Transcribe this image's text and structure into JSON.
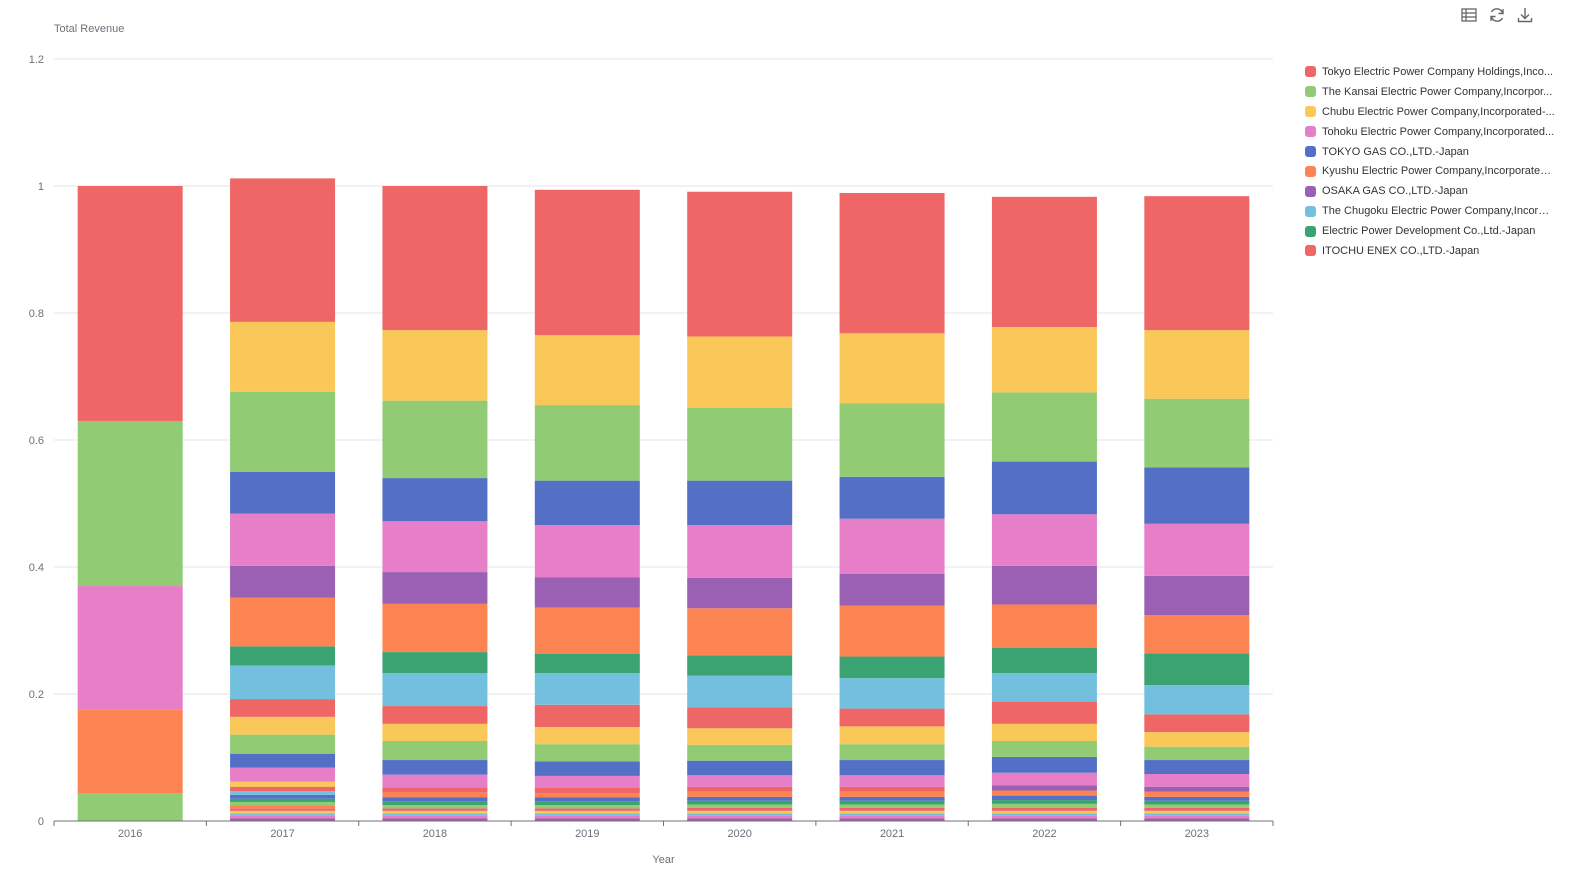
{
  "toolbar": {
    "icons": [
      "table-icon",
      "refresh-icon",
      "download-icon"
    ]
  },
  "legend": [
    {
      "label": "Tokyo Electric Power Company Holdings,Inco...",
      "color": "#ee6666"
    },
    {
      "label": "The Kansai Electric Power Company,Incorpor...",
      "color": "#91cc75"
    },
    {
      "label": "Chubu Electric Power Company,Incorporated-...",
      "color": "#fac858"
    },
    {
      "label": "Tohoku Electric Power Company,Incorporated...",
      "color": "#e77ec8"
    },
    {
      "label": "TOKYO GAS CO.,LTD.-Japan",
      "color": "#5470c6"
    },
    {
      "label": "Kyushu Electric Power Company,Incorporated...",
      "color": "#fc8452"
    },
    {
      "label": "OSAKA GAS CO.,LTD.-Japan",
      "color": "#9a60b4"
    },
    {
      "label": "The Chugoku Electric Power Company,Incorpo...",
      "color": "#73c0de"
    },
    {
      "label": "Electric Power Development Co.,Ltd.-Japan",
      "color": "#3ba272"
    },
    {
      "label": "ITOCHU ENEX CO.,LTD.-Japan",
      "color": "#ee6666"
    }
  ],
  "chart_data": {
    "type": "bar",
    "stacked": true,
    "title": "",
    "ylabel": "Total Revenue",
    "xlabel": "Year",
    "ylim": [
      0,
      1.2
    ],
    "yticks": [
      "0",
      "0.2",
      "0.4",
      "0.6",
      "0.8",
      "1",
      "1.2"
    ],
    "categories": [
      "2016",
      "2017",
      "2018",
      "2019",
      "2020",
      "2021",
      "2022",
      "2023"
    ],
    "grid": true,
    "legend_position": "right",
    "bars": [
      {
        "year": "2016",
        "segments": [
          {
            "value": 0.043,
            "color": "#91cc75"
          },
          {
            "value": 0.132,
            "color": "#fc8452"
          },
          {
            "value": 0.195,
            "color": "#e77ec8"
          },
          {
            "value": 0.26,
            "color": "#91cc75"
          },
          {
            "value": 0.37,
            "color": "#ee6666"
          }
        ]
      },
      {
        "year": "2017",
        "segments": [
          {
            "value": 0.004,
            "color": "#9a60b4"
          },
          {
            "value": 0.004,
            "color": "#e77ec8"
          },
          {
            "value": 0.004,
            "color": "#73c0de"
          },
          {
            "value": 0.004,
            "color": "#fac858"
          },
          {
            "value": 0.004,
            "color": "#ee6666"
          },
          {
            "value": 0.005,
            "color": "#fc8452"
          },
          {
            "value": 0.005,
            "color": "#91cc75"
          },
          {
            "value": 0.005,
            "color": "#3ba272"
          },
          {
            "value": 0.006,
            "color": "#5470c6"
          },
          {
            "value": 0.006,
            "color": "#73c0de"
          },
          {
            "value": 0.007,
            "color": "#ee6666"
          },
          {
            "value": 0.008,
            "color": "#fac858"
          },
          {
            "value": 0.022,
            "color": "#e77ec8"
          },
          {
            "value": 0.022,
            "color": "#5470c6"
          },
          {
            "value": 0.03,
            "color": "#91cc75"
          },
          {
            "value": 0.028,
            "color": "#fac858"
          },
          {
            "value": 0.028,
            "color": "#ee6666"
          },
          {
            "value": 0.053,
            "color": "#73c0de"
          },
          {
            "value": 0.03,
            "color": "#3ba272"
          },
          {
            "value": 0.077,
            "color": "#fc8452"
          },
          {
            "value": 0.05,
            "color": "#9a60b4"
          },
          {
            "value": 0.082,
            "color": "#e77ec8"
          },
          {
            "value": 0.066,
            "color": "#5470c6"
          },
          {
            "value": 0.126,
            "color": "#91cc75"
          },
          {
            "value": 0.11,
            "color": "#fac858"
          },
          {
            "value": 0.226,
            "color": "#ee6666"
          }
        ]
      },
      {
        "year": "2018",
        "segments": [
          {
            "value": 0.004,
            "color": "#9a60b4"
          },
          {
            "value": 0.004,
            "color": "#e77ec8"
          },
          {
            "value": 0.004,
            "color": "#73c0de"
          },
          {
            "value": 0.004,
            "color": "#fac858"
          },
          {
            "value": 0.004,
            "color": "#ee6666"
          },
          {
            "value": 0.005,
            "color": "#91cc75"
          },
          {
            "value": 0.006,
            "color": "#3ba272"
          },
          {
            "value": 0.006,
            "color": "#5470c6"
          },
          {
            "value": 0.008,
            "color": "#fc8452"
          },
          {
            "value": 0.008,
            "color": "#ee6666"
          },
          {
            "value": 0.02,
            "color": "#e77ec8"
          },
          {
            "value": 0.023,
            "color": "#5470c6"
          },
          {
            "value": 0.03,
            "color": "#91cc75"
          },
          {
            "value": 0.027,
            "color": "#fac858"
          },
          {
            "value": 0.028,
            "color": "#ee6666"
          },
          {
            "value": 0.052,
            "color": "#73c0de"
          },
          {
            "value": 0.033,
            "color": "#3ba272"
          },
          {
            "value": 0.076,
            "color": "#fc8452"
          },
          {
            "value": 0.05,
            "color": "#9a60b4"
          },
          {
            "value": 0.08,
            "color": "#e77ec8"
          },
          {
            "value": 0.068,
            "color": "#5470c6"
          },
          {
            "value": 0.122,
            "color": "#91cc75"
          },
          {
            "value": 0.111,
            "color": "#fac858"
          },
          {
            "value": 0.227,
            "color": "#ee6666"
          }
        ]
      },
      {
        "year": "2019",
        "segments": [
          {
            "value": 0.004,
            "color": "#9a60b4"
          },
          {
            "value": 0.004,
            "color": "#e77ec8"
          },
          {
            "value": 0.004,
            "color": "#73c0de"
          },
          {
            "value": 0.004,
            "color": "#fac858"
          },
          {
            "value": 0.004,
            "color": "#ee6666"
          },
          {
            "value": 0.005,
            "color": "#91cc75"
          },
          {
            "value": 0.006,
            "color": "#3ba272"
          },
          {
            "value": 0.006,
            "color": "#5470c6"
          },
          {
            "value": 0.007,
            "color": "#fc8452"
          },
          {
            "value": 0.008,
            "color": "#ee6666"
          },
          {
            "value": 0.019,
            "color": "#e77ec8"
          },
          {
            "value": 0.023,
            "color": "#5470c6"
          },
          {
            "value": 0.027,
            "color": "#91cc75"
          },
          {
            "value": 0.027,
            "color": "#fac858"
          },
          {
            "value": 0.035,
            "color": "#ee6666"
          },
          {
            "value": 0.05,
            "color": "#73c0de"
          },
          {
            "value": 0.03,
            "color": "#3ba272"
          },
          {
            "value": 0.073,
            "color": "#fc8452"
          },
          {
            "value": 0.048,
            "color": "#9a60b4"
          },
          {
            "value": 0.082,
            "color": "#e77ec8"
          },
          {
            "value": 0.07,
            "color": "#5470c6"
          },
          {
            "value": 0.119,
            "color": "#91cc75"
          },
          {
            "value": 0.11,
            "color": "#fac858"
          },
          {
            "value": 0.229,
            "color": "#ee6666"
          }
        ]
      },
      {
        "year": "2020",
        "segments": [
          {
            "value": 0.004,
            "color": "#9a60b4"
          },
          {
            "value": 0.004,
            "color": "#e77ec8"
          },
          {
            "value": 0.004,
            "color": "#73c0de"
          },
          {
            "value": 0.004,
            "color": "#fac858"
          },
          {
            "value": 0.005,
            "color": "#ee6666"
          },
          {
            "value": 0.005,
            "color": "#91cc75"
          },
          {
            "value": 0.006,
            "color": "#3ba272"
          },
          {
            "value": 0.006,
            "color": "#5470c6"
          },
          {
            "value": 0.008,
            "color": "#fc8452"
          },
          {
            "value": 0.008,
            "color": "#ee6666"
          },
          {
            "value": 0.018,
            "color": "#e77ec8"
          },
          {
            "value": 0.023,
            "color": "#5470c6"
          },
          {
            "value": 0.025,
            "color": "#91cc75"
          },
          {
            "value": 0.026,
            "color": "#fac858"
          },
          {
            "value": 0.033,
            "color": "#ee6666"
          },
          {
            "value": 0.05,
            "color": "#73c0de"
          },
          {
            "value": 0.032,
            "color": "#3ba272"
          },
          {
            "value": 0.074,
            "color": "#fc8452"
          },
          {
            "value": 0.048,
            "color": "#9a60b4"
          },
          {
            "value": 0.083,
            "color": "#e77ec8"
          },
          {
            "value": 0.07,
            "color": "#5470c6"
          },
          {
            "value": 0.115,
            "color": "#91cc75"
          },
          {
            "value": 0.112,
            "color": "#fac858"
          },
          {
            "value": 0.228,
            "color": "#ee6666"
          }
        ]
      },
      {
        "year": "2021",
        "segments": [
          {
            "value": 0.004,
            "color": "#9a60b4"
          },
          {
            "value": 0.004,
            "color": "#e77ec8"
          },
          {
            "value": 0.004,
            "color": "#73c0de"
          },
          {
            "value": 0.004,
            "color": "#fac858"
          },
          {
            "value": 0.005,
            "color": "#ee6666"
          },
          {
            "value": 0.005,
            "color": "#91cc75"
          },
          {
            "value": 0.006,
            "color": "#3ba272"
          },
          {
            "value": 0.006,
            "color": "#5470c6"
          },
          {
            "value": 0.008,
            "color": "#fc8452"
          },
          {
            "value": 0.008,
            "color": "#ee6666"
          },
          {
            "value": 0.018,
            "color": "#e77ec8"
          },
          {
            "value": 0.024,
            "color": "#5470c6"
          },
          {
            "value": 0.025,
            "color": "#91cc75"
          },
          {
            "value": 0.028,
            "color": "#fac858"
          },
          {
            "value": 0.028,
            "color": "#ee6666"
          },
          {
            "value": 0.048,
            "color": "#73c0de"
          },
          {
            "value": 0.034,
            "color": "#3ba272"
          },
          {
            "value": 0.08,
            "color": "#fc8452"
          },
          {
            "value": 0.05,
            "color": "#9a60b4"
          },
          {
            "value": 0.087,
            "color": "#e77ec8"
          },
          {
            "value": 0.066,
            "color": "#5470c6"
          },
          {
            "value": 0.116,
            "color": "#91cc75"
          },
          {
            "value": 0.11,
            "color": "#fac858"
          },
          {
            "value": 0.221,
            "color": "#ee6666"
          }
        ]
      },
      {
        "year": "2022",
        "segments": [
          {
            "value": 0.004,
            "color": "#9a60b4"
          },
          {
            "value": 0.004,
            "color": "#e77ec8"
          },
          {
            "value": 0.004,
            "color": "#73c0de"
          },
          {
            "value": 0.004,
            "color": "#fac858"
          },
          {
            "value": 0.005,
            "color": "#ee6666"
          },
          {
            "value": 0.006,
            "color": "#91cc75"
          },
          {
            "value": 0.006,
            "color": "#3ba272"
          },
          {
            "value": 0.007,
            "color": "#5470c6"
          },
          {
            "value": 0.008,
            "color": "#fc8452"
          },
          {
            "value": 0.008,
            "color": "#9a60b4"
          },
          {
            "value": 0.02,
            "color": "#e77ec8"
          },
          {
            "value": 0.025,
            "color": "#5470c6"
          },
          {
            "value": 0.025,
            "color": "#91cc75"
          },
          {
            "value": 0.027,
            "color": "#fac858"
          },
          {
            "value": 0.035,
            "color": "#ee6666"
          },
          {
            "value": 0.045,
            "color": "#73c0de"
          },
          {
            "value": 0.04,
            "color": "#3ba272"
          },
          {
            "value": 0.068,
            "color": "#fc8452"
          },
          {
            "value": 0.061,
            "color": "#9a60b4"
          },
          {
            "value": 0.081,
            "color": "#e77ec8"
          },
          {
            "value": 0.083,
            "color": "#5470c6"
          },
          {
            "value": 0.109,
            "color": "#91cc75"
          },
          {
            "value": 0.103,
            "color": "#fac858"
          },
          {
            "value": 0.205,
            "color": "#ee6666"
          }
        ]
      },
      {
        "year": "2023",
        "segments": [
          {
            "value": 0.004,
            "color": "#9a60b4"
          },
          {
            "value": 0.004,
            "color": "#e77ec8"
          },
          {
            "value": 0.004,
            "color": "#73c0de"
          },
          {
            "value": 0.004,
            "color": "#fac858"
          },
          {
            "value": 0.005,
            "color": "#ee6666"
          },
          {
            "value": 0.005,
            "color": "#91cc75"
          },
          {
            "value": 0.006,
            "color": "#3ba272"
          },
          {
            "value": 0.006,
            "color": "#5470c6"
          },
          {
            "value": 0.008,
            "color": "#fc8452"
          },
          {
            "value": 0.008,
            "color": "#9a60b4"
          },
          {
            "value": 0.02,
            "color": "#e77ec8"
          },
          {
            "value": 0.022,
            "color": "#5470c6"
          },
          {
            "value": 0.021,
            "color": "#91cc75"
          },
          {
            "value": 0.023,
            "color": "#fac858"
          },
          {
            "value": 0.028,
            "color": "#ee6666"
          },
          {
            "value": 0.046,
            "color": "#73c0de"
          },
          {
            "value": 0.05,
            "color": "#3ba272"
          },
          {
            "value": 0.06,
            "color": "#fc8452"
          },
          {
            "value": 0.062,
            "color": "#9a60b4"
          },
          {
            "value": 0.082,
            "color": "#e77ec8"
          },
          {
            "value": 0.089,
            "color": "#5470c6"
          },
          {
            "value": 0.108,
            "color": "#91cc75"
          },
          {
            "value": 0.108,
            "color": "#fac858"
          },
          {
            "value": 0.211,
            "color": "#ee6666"
          }
        ]
      }
    ]
  }
}
